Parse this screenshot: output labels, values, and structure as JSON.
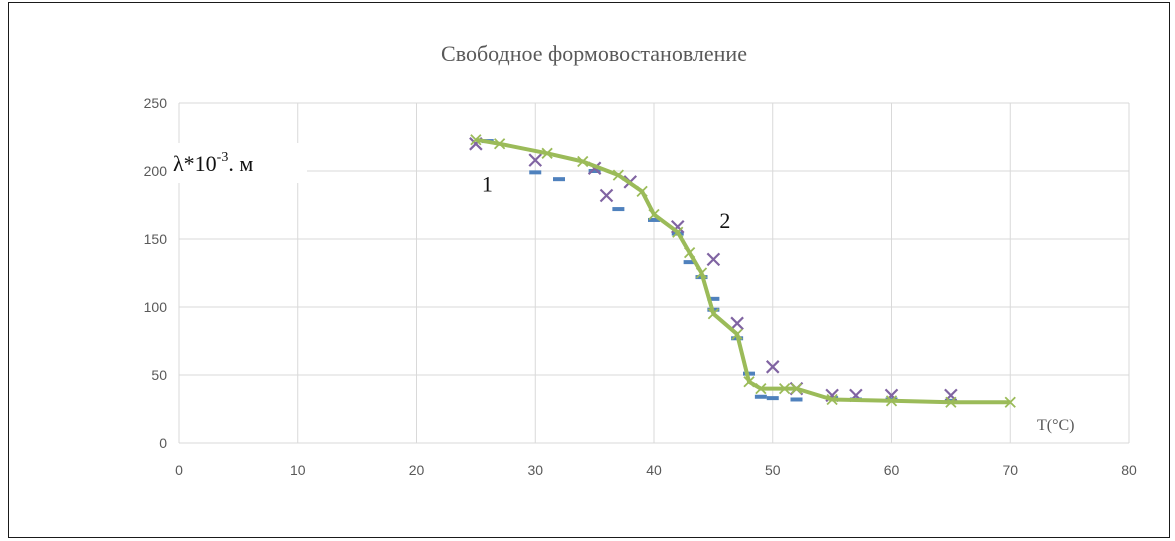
{
  "chart_data": {
    "type": "line",
    "title": "Свободное формовостановление",
    "ylabel": "λ*10-3, м",
    "ylabel_base": "λ*10",
    "ylabel_exp": "-3",
    "ylabel_unit": ". м",
    "xlabel": "T(°C)",
    "xlim": [
      0,
      80
    ],
    "ylim": [
      0,
      250
    ],
    "x_ticks": [
      "0",
      "10",
      "20",
      "30",
      "40",
      "50",
      "60",
      "70",
      "80"
    ],
    "y_ticks": [
      "0",
      "50",
      "100",
      "150",
      "200",
      "250"
    ],
    "grid": true,
    "curve_labels": [
      {
        "text": "1",
        "x": 25.5,
        "y": 185
      },
      {
        "text": "2",
        "x": 45.5,
        "y": 158
      }
    ],
    "series": [
      {
        "marker": "dash",
        "color": "#4f81bd",
        "points": [
          [
            26,
            222
          ],
          [
            30,
            199
          ],
          [
            32,
            194
          ],
          [
            35,
            200
          ],
          [
            37,
            172
          ],
          [
            40,
            164
          ],
          [
            42,
            154
          ],
          [
            43,
            133
          ],
          [
            44,
            122
          ],
          [
            45,
            106
          ],
          [
            45,
            98
          ],
          [
            47,
            77
          ],
          [
            48,
            51
          ],
          [
            49,
            34
          ],
          [
            50,
            33
          ],
          [
            52,
            32
          ],
          [
            55,
            33
          ],
          [
            57,
            32
          ],
          [
            60,
            32
          ],
          [
            65,
            31
          ]
        ]
      },
      {
        "marker": "cross",
        "color": "#8064a2",
        "points": [
          [
            25,
            220
          ],
          [
            30,
            208
          ],
          [
            35,
            202
          ],
          [
            36,
            182
          ],
          [
            38,
            192
          ],
          [
            42,
            159
          ],
          [
            45,
            135
          ],
          [
            47,
            88
          ],
          [
            50,
            56
          ],
          [
            52,
            40
          ],
          [
            55,
            35
          ],
          [
            57,
            35
          ],
          [
            60,
            35
          ],
          [
            65,
            35
          ]
        ]
      },
      {
        "marker": "x",
        "color": "#9bbb59",
        "points": [
          [
            25,
            223
          ],
          [
            27,
            220
          ],
          [
            31,
            213
          ],
          [
            34,
            207
          ],
          [
            37,
            197
          ],
          [
            39,
            185
          ],
          [
            40,
            168
          ],
          [
            42,
            155
          ],
          [
            43,
            140
          ],
          [
            44,
            125
          ],
          [
            45,
            95
          ],
          [
            47,
            80
          ],
          [
            48,
            45
          ],
          [
            49,
            40
          ],
          [
            51,
            40
          ],
          [
            52,
            40
          ],
          [
            55,
            32
          ],
          [
            60,
            31
          ],
          [
            65,
            30
          ],
          [
            70,
            30
          ]
        ]
      }
    ]
  }
}
